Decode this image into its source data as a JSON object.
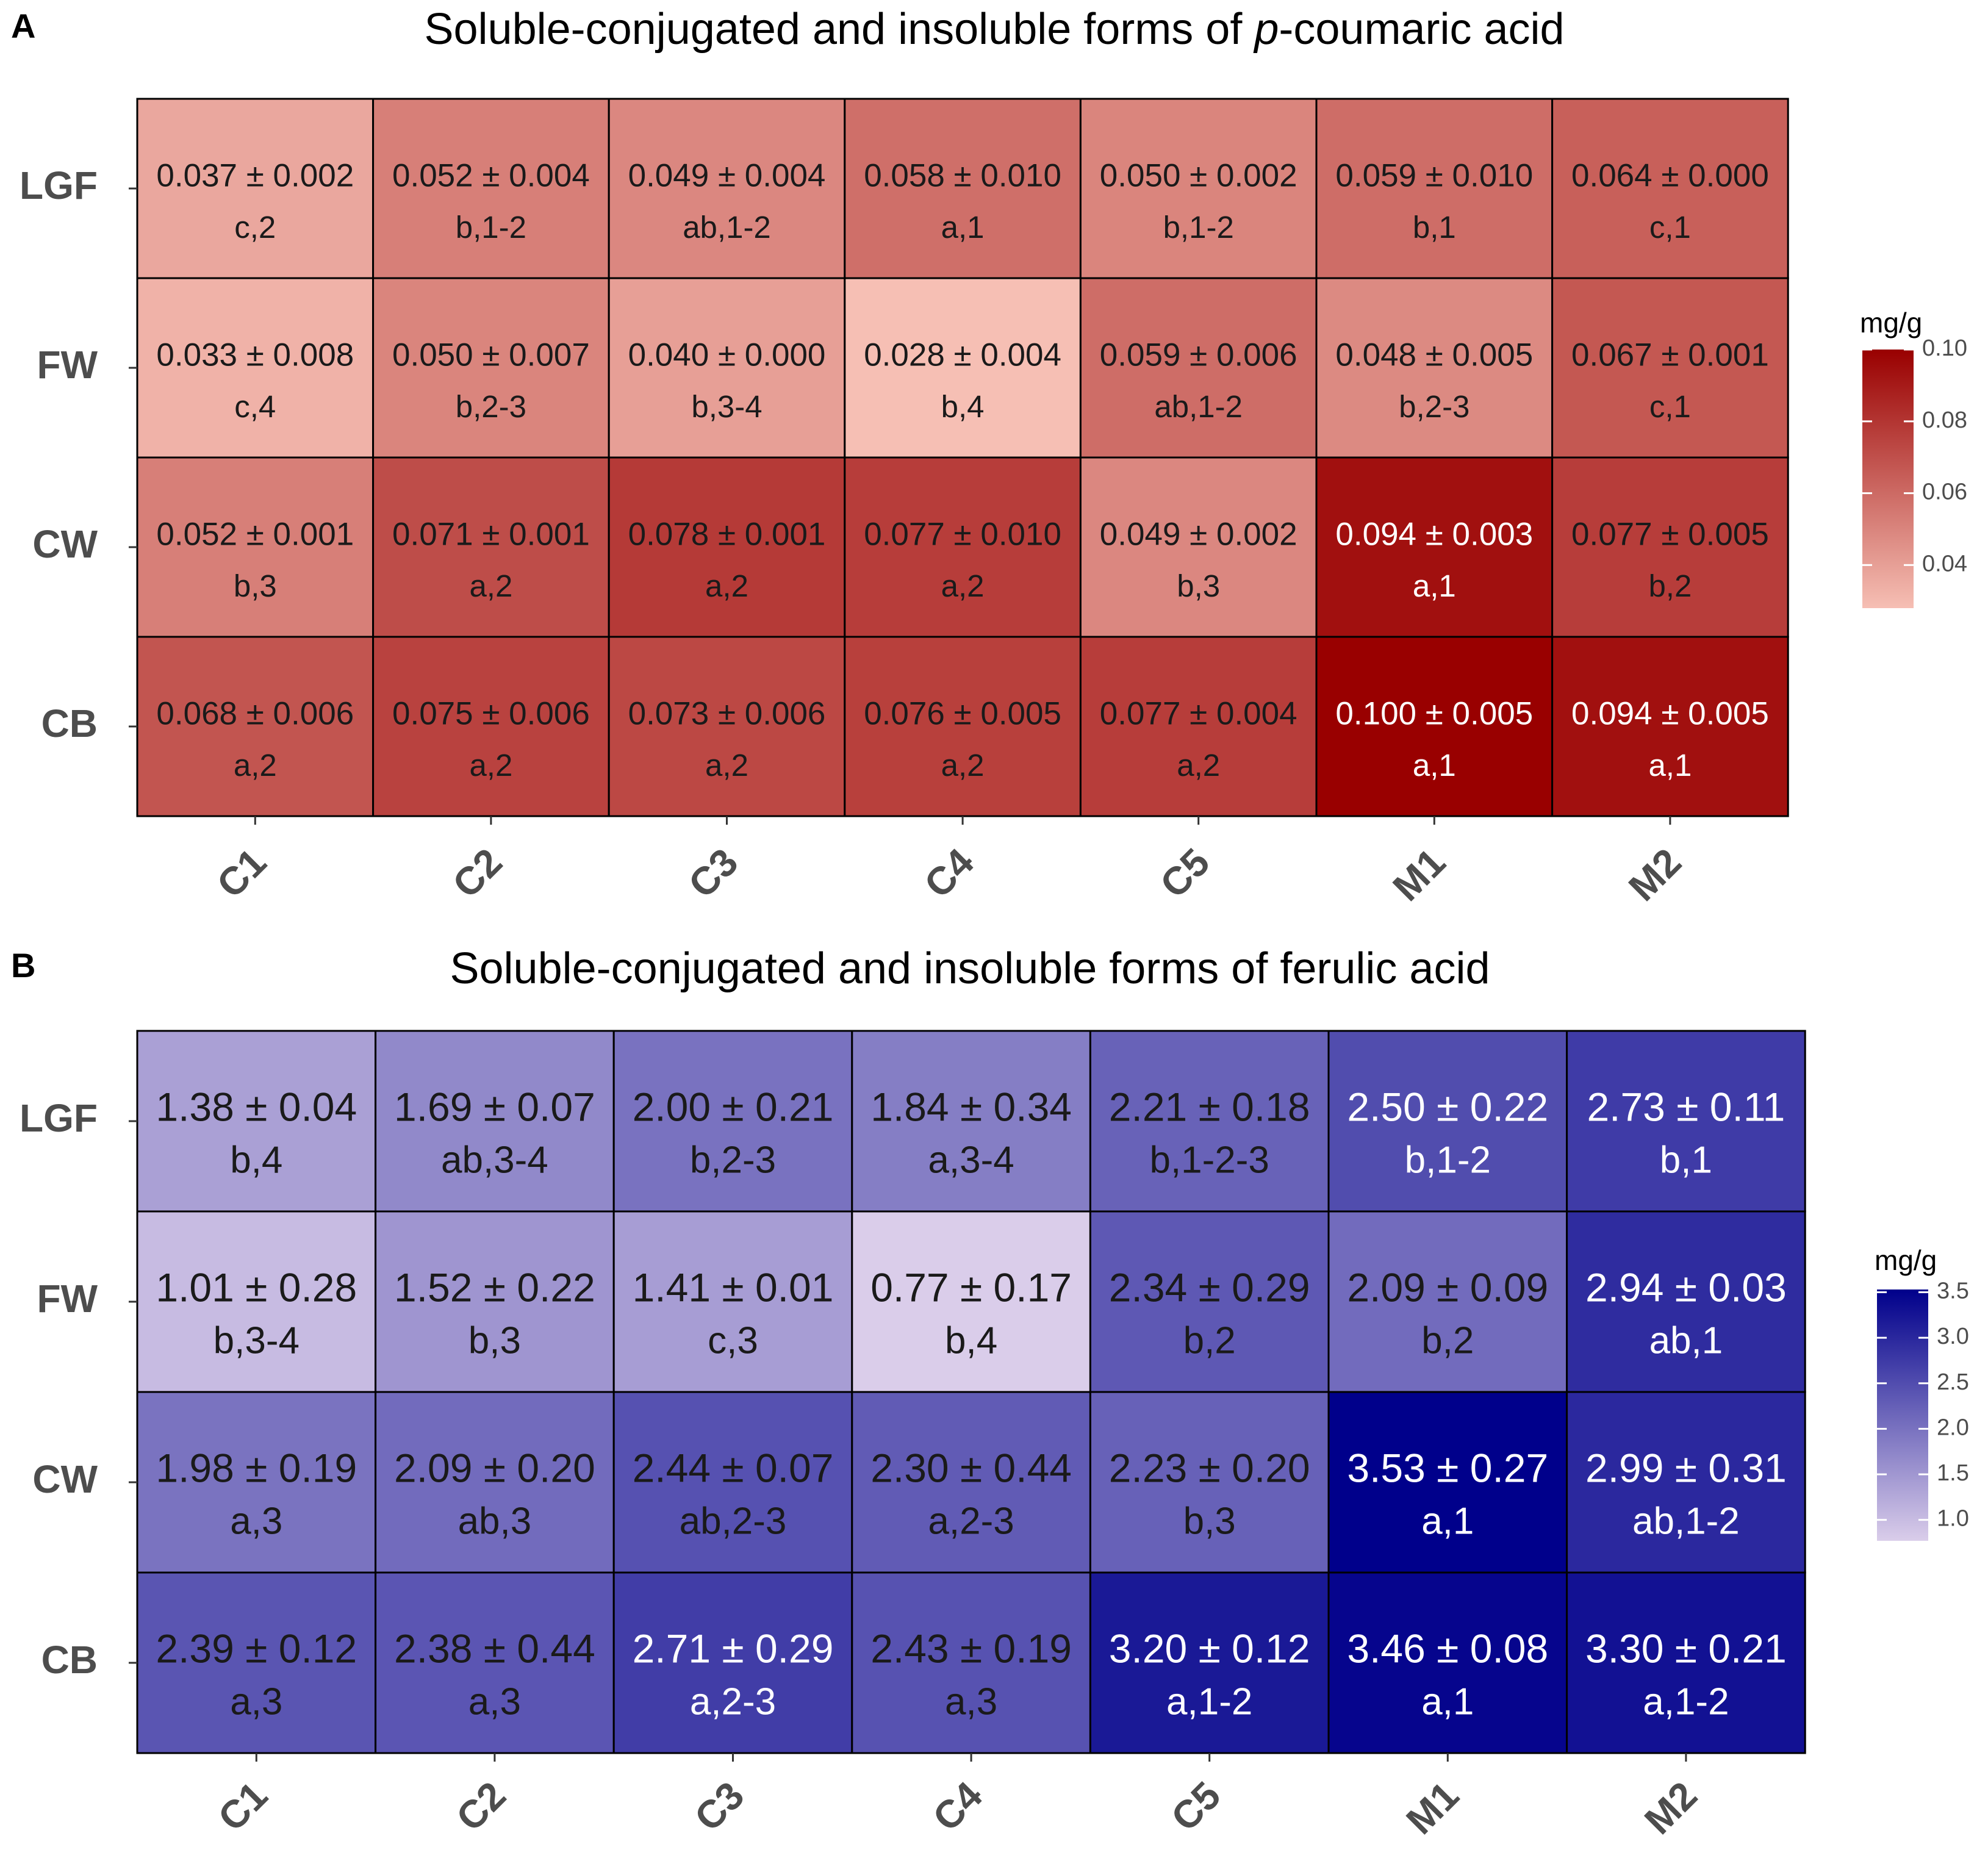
{
  "chart_data": [
    {
      "type": "heatmap",
      "panel": "A",
      "title_prefix": "Soluble-conjugated and insoluble forms of ",
      "title_italic": "p",
      "title_suffix": "-coumaric acid",
      "x": [
        "C1",
        "C2",
        "C3",
        "C4",
        "C5",
        "M1",
        "M2"
      ],
      "y": [
        "LGF",
        "FW",
        "CW",
        "CB"
      ],
      "values": [
        [
          0.037,
          0.052,
          0.049,
          0.058,
          0.05,
          0.059,
          0.064
        ],
        [
          0.033,
          0.05,
          0.04,
          0.028,
          0.059,
          0.048,
          0.067
        ],
        [
          0.052,
          0.071,
          0.078,
          0.077,
          0.049,
          0.094,
          0.077
        ],
        [
          0.068,
          0.075,
          0.073,
          0.076,
          0.077,
          0.1,
          0.094
        ]
      ],
      "value_labels": [
        [
          "0.037 ± 0.002",
          "0.052 ± 0.004",
          "0.049 ± 0.004",
          "0.058 ± 0.010",
          "0.050 ± 0.002",
          "0.059 ± 0.010",
          "0.064 ± 0.000"
        ],
        [
          "0.033 ± 0.008",
          "0.050 ± 0.007",
          "0.040 ± 0.000",
          "0.028 ± 0.004",
          "0.059 ± 0.006",
          "0.048 ± 0.005",
          "0.067 ± 0.001"
        ],
        [
          "0.052 ± 0.001",
          "0.071 ± 0.001",
          "0.078 ± 0.001",
          "0.077 ± 0.010",
          "0.049 ± 0.002",
          "0.094 ± 0.003",
          "0.077 ± 0.005"
        ],
        [
          "0.068 ± 0.006",
          "0.075 ± 0.006",
          "0.073 ± 0.006",
          "0.076 ± 0.005",
          "0.077 ± 0.004",
          "0.100 ± 0.005",
          "0.094 ± 0.005"
        ]
      ],
      "group_labels": [
        [
          "c,2",
          "b,1-2",
          "ab,1-2",
          "a,1",
          "b,1-2",
          "b,1",
          "c,1"
        ],
        [
          "c,4",
          "b,2-3",
          "b,3-4",
          "b,4",
          "ab,1-2",
          "b,2-3",
          "c,1"
        ],
        [
          "b,3",
          "a,2",
          "a,2",
          "a,2",
          "b,3",
          "a,1",
          "b,2"
        ],
        [
          "a,2",
          "a,2",
          "a,2",
          "a,2",
          "a,2",
          "a,1",
          "a,1"
        ]
      ],
      "white_text_threshold": 0.09,
      "legend_title": "mg/g",
      "legend_range": [
        0.028,
        0.1
      ],
      "legend_ticks": [
        0.04,
        0.06,
        0.08,
        0.1
      ],
      "legend_tick_labels": [
        "0.04",
        "0.06",
        "0.08",
        "0.10"
      ],
      "color_low": "#f6bfb4",
      "color_high": "#990000"
    },
    {
      "type": "heatmap",
      "panel": "B",
      "title_prefix": "Soluble-conjugated and insoluble forms of ferulic acid",
      "title_italic": "",
      "title_suffix": "",
      "x": [
        "C1",
        "C2",
        "C3",
        "C4",
        "C5",
        "M1",
        "M2"
      ],
      "y": [
        "LGF",
        "FW",
        "CW",
        "CB"
      ],
      "values": [
        [
          1.38,
          1.69,
          2.0,
          1.84,
          2.21,
          2.5,
          2.73
        ],
        [
          1.01,
          1.52,
          1.41,
          0.77,
          2.34,
          2.09,
          2.94
        ],
        [
          1.98,
          2.09,
          2.44,
          2.3,
          2.23,
          3.53,
          2.99
        ],
        [
          2.39,
          2.38,
          2.71,
          2.43,
          3.2,
          3.46,
          3.3
        ]
      ],
      "value_labels": [
        [
          "1.38 ± 0.04",
          "1.69 ± 0.07",
          "2.00 ± 0.21",
          "1.84 ± 0.34",
          "2.21 ± 0.18",
          "2.50 ± 0.22",
          "2.73 ± 0.11"
        ],
        [
          "1.01 ± 0.28",
          "1.52 ± 0.22",
          "1.41 ± 0.01",
          "0.77 ± 0.17",
          "2.34 ± 0.29",
          "2.09 ± 0.09",
          "2.94 ± 0.03"
        ],
        [
          "1.98 ± 0.19",
          "2.09 ± 0.20",
          "2.44 ± 0.07",
          "2.30 ± 0.44",
          "2.23 ± 0.20",
          "3.53 ± 0.27",
          "2.99 ± 0.31"
        ],
        [
          "2.39 ± 0.12",
          "2.38 ± 0.44",
          "2.71 ± 0.29",
          "2.43 ± 0.19",
          "3.20 ± 0.12",
          "3.46 ± 0.08",
          "3.30 ± 0.21"
        ]
      ],
      "group_labels": [
        [
          "b,4",
          "ab,3-4",
          "b,2-3",
          "a,3-4",
          "b,1-2-3",
          "b,1-2",
          "b,1"
        ],
        [
          "b,3-4",
          "b,3",
          "c,3",
          "b,4",
          "b,2",
          "b,2",
          "ab,1"
        ],
        [
          "a,3",
          "ab,3",
          "ab,2-3",
          "a,2-3",
          "b,3",
          "a,1",
          "ab,1-2"
        ],
        [
          "a,3",
          "a,3",
          "a,2-3",
          "a,3",
          "a,1-2",
          "a,1",
          "a,1-2"
        ]
      ],
      "white_text_threshold": 2.48,
      "legend_title": "mg/g",
      "legend_range": [
        0.77,
        3.53
      ],
      "legend_ticks": [
        1.0,
        1.5,
        2.0,
        2.5,
        3.0,
        3.5
      ],
      "legend_tick_labels": [
        "1.0",
        "1.5",
        "2.0",
        "2.5",
        "3.0",
        "3.5"
      ],
      "color_low": "#dacdea",
      "color_high": "#00008b"
    }
  ]
}
